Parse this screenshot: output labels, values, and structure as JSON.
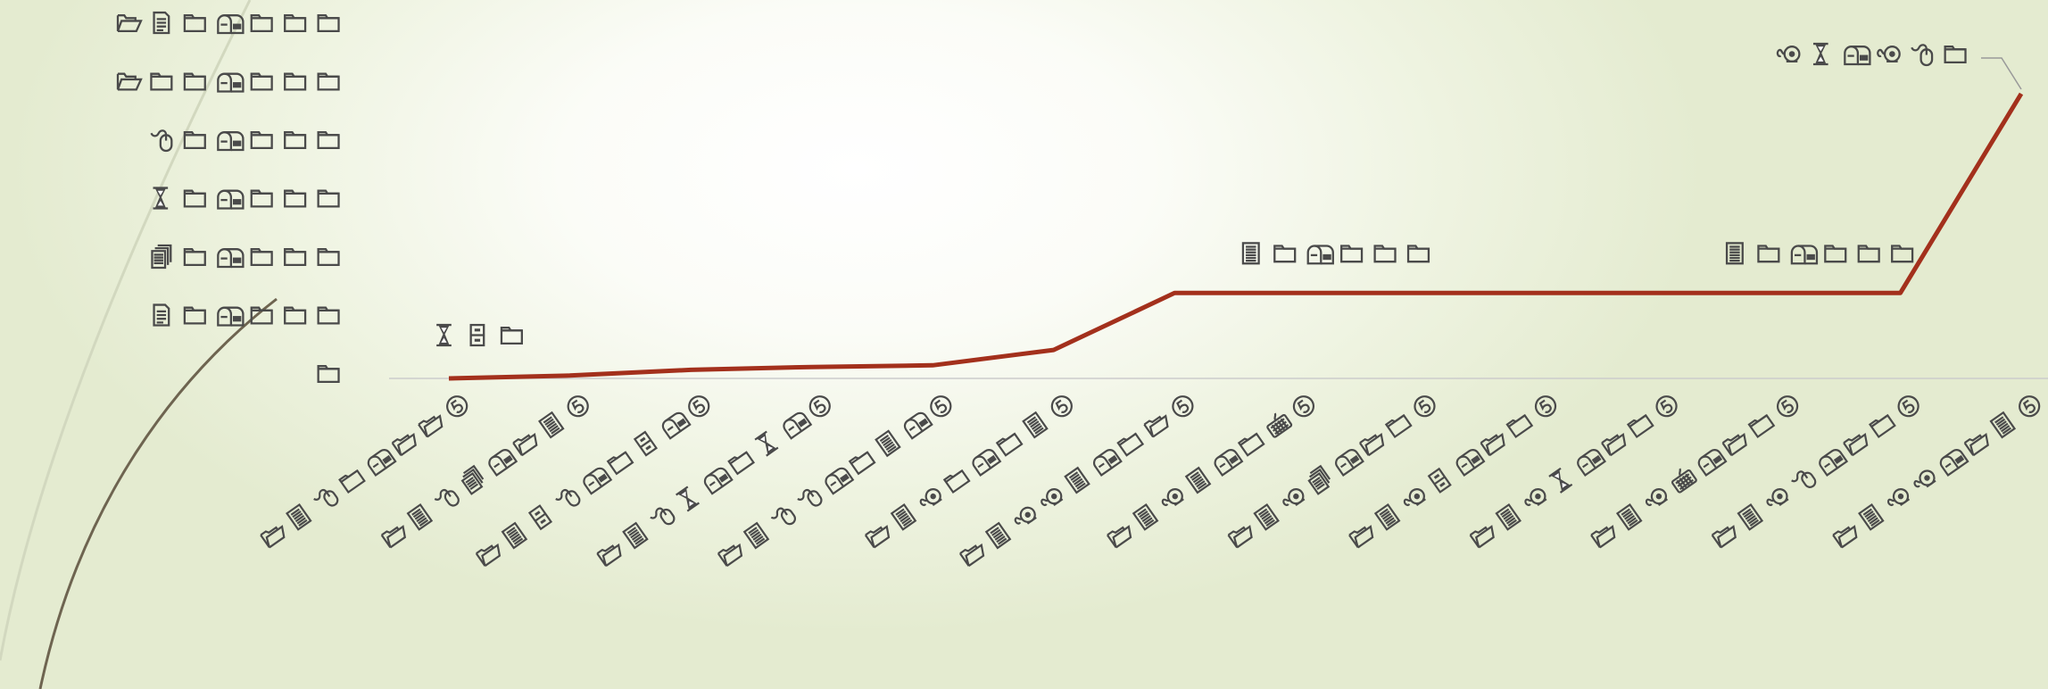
{
  "chart_data": {
    "type": "line",
    "title": "",
    "xlabel": "",
    "ylabel": "",
    "y_ticks": [
      [
        "folder-open-icon",
        "document-icon",
        "folder-icon",
        "mailbox-icon",
        "folder-icon",
        "folder-icon",
        "folder-icon"
      ],
      [
        "folder-open-icon",
        "folder-icon",
        "folder-icon",
        "mailbox-icon",
        "folder-icon",
        "folder-icon",
        "folder-icon"
      ],
      [
        "mouse-icon",
        "folder-icon",
        "mailbox-icon",
        "folder-icon",
        "folder-icon",
        "folder-icon"
      ],
      [
        "hourglass-icon",
        "folder-icon",
        "mailbox-icon",
        "folder-icon",
        "folder-icon",
        "folder-icon"
      ],
      [
        "documents-icon",
        "folder-icon",
        "mailbox-icon",
        "folder-icon",
        "folder-icon",
        "folder-icon"
      ],
      [
        "document-icon",
        "folder-icon",
        "mailbox-icon",
        "folder-icon",
        "folder-icon",
        "folder-icon"
      ],
      [
        "folder-icon"
      ]
    ],
    "x_ticks": [
      [
        "folder-open-icon",
        "document-lines-icon",
        "mouse-icon",
        "folder-icon",
        "mailbox-icon",
        "folder-open-icon",
        "folder-open-icon",
        "five-icon"
      ],
      [
        "folder-open-icon",
        "document-lines-icon",
        "mouse-icon",
        "documents-icon",
        "mailbox-icon",
        "folder-open-icon",
        "document-lines-icon",
        "five-icon"
      ],
      [
        "folder-open-icon",
        "document-lines-icon",
        "cabinet-icon",
        "mouse-icon",
        "mailbox-icon",
        "folder-icon",
        "cabinet-icon",
        "mailbox-icon",
        "five-icon"
      ],
      [
        "folder-open-icon",
        "document-lines-icon",
        "mouse-icon",
        "hourglass-icon",
        "mailbox-icon",
        "folder-icon",
        "hourglass-icon",
        "mailbox-icon",
        "five-icon"
      ],
      [
        "folder-open-icon",
        "document-lines-icon",
        "mouse-icon",
        "mouse-icon",
        "mailbox-icon",
        "folder-icon",
        "document-lines-icon",
        "mailbox-icon",
        "five-icon"
      ],
      [
        "folder-open-icon",
        "document-lines-icon",
        "webcam-icon",
        "folder-icon",
        "mailbox-icon",
        "folder-icon",
        "document-lines-icon",
        "five-icon"
      ],
      [
        "folder-open-icon",
        "document-lines-icon",
        "webcam-icon",
        "webcam-icon",
        "document-lines-icon",
        "mailbox-icon",
        "folder-icon",
        "folder-open-icon",
        "five-icon"
      ],
      [
        "folder-open-icon",
        "document-lines-icon",
        "webcam-icon",
        "document-lines-icon",
        "mailbox-icon",
        "folder-icon",
        "keyboard-icon",
        "five-icon"
      ],
      [
        "folder-open-icon",
        "document-lines-icon",
        "webcam-icon",
        "documents-icon",
        "mailbox-icon",
        "folder-open-icon",
        "folder-icon",
        "five-icon"
      ],
      [
        "folder-open-icon",
        "document-lines-icon",
        "webcam-icon",
        "cabinet-icon",
        "mailbox-icon",
        "folder-open-icon",
        "folder-icon",
        "five-icon"
      ],
      [
        "folder-open-icon",
        "document-lines-icon",
        "webcam-icon",
        "hourglass-icon",
        "mailbox-icon",
        "folder-open-icon",
        "folder-icon",
        "five-icon"
      ],
      [
        "folder-open-icon",
        "document-lines-icon",
        "webcam-icon",
        "keyboard-icon",
        "mailbox-icon",
        "folder-open-icon",
        "folder-icon",
        "five-icon"
      ],
      [
        "folder-open-icon",
        "document-lines-icon",
        "webcam-icon",
        "mouse-icon",
        "mailbox-icon",
        "folder-open-icon",
        "folder-icon",
        "five-icon"
      ],
      [
        "folder-open-icon",
        "document-lines-icon",
        "webcam-icon",
        "webcam-icon",
        "mailbox-icon",
        "folder-open-icon",
        "document-lines-icon",
        "five-icon"
      ]
    ],
    "series": [
      {
        "values": [
          0,
          0.05,
          0.15,
          0.2,
          0.23,
          0.5,
          1.5,
          1.5,
          1.5,
          1.5,
          1.5,
          1.5,
          1.5,
          5.0
        ]
      }
    ],
    "data_labels": [
      {
        "index": 0,
        "icons": [
          "hourglass-icon",
          "cabinet-icon",
          "folder-icon"
        ]
      },
      {
        "index": 7,
        "icons": [
          "document-lines-icon",
          "folder-icon",
          "mailbox-icon",
          "folder-icon",
          "folder-icon",
          "folder-icon"
        ]
      },
      {
        "index": 11,
        "icons": [
          "document-lines-icon",
          "folder-icon",
          "mailbox-icon",
          "folder-icon",
          "folder-icon",
          "folder-icon"
        ]
      },
      {
        "index": 13,
        "icons": [
          "webcam-icon",
          "hourglass-icon",
          "mailbox-icon",
          "webcam-icon",
          "mouse-icon",
          "folder-icon"
        ]
      }
    ],
    "ylim": [
      0,
      5.5
    ],
    "legend": "none",
    "grid": false,
    "colors": {
      "line": "#a3301c",
      "icon": "#4a4a4a",
      "baseline": "#cccccc",
      "leader": "#999999"
    }
  }
}
